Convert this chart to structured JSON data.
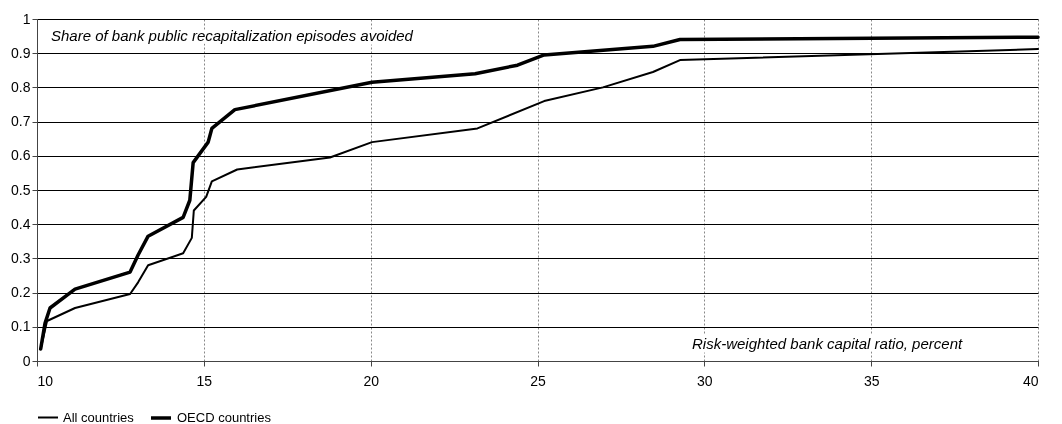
{
  "chart_data": {
    "type": "line",
    "xlabel": "Risk-weighted bank capital ratio, percent",
    "ylabel": "Share of bank public recapitalization episodes avoided",
    "xlim": [
      10,
      40
    ],
    "xticks": [
      10,
      15,
      20,
      25,
      30,
      35,
      40
    ],
    "ylim": [
      0,
      1
    ],
    "yticks": [
      0,
      0.1,
      0.2,
      0.3,
      0.4,
      0.5,
      0.6,
      0.7,
      0.8,
      0.9,
      1
    ],
    "grid": true,
    "legend": "bottom",
    "line_style": "solid",
    "marker": "none",
    "series": [
      {
        "name": "All countries",
        "color": "#000000",
        "x": [
          10.11,
          10.3,
          11.14,
          12.79,
          13.03,
          13.33,
          14.38,
          14.64,
          14.7,
          15.07,
          15.24,
          16.0,
          18.78,
          20.04,
          23.2,
          25.2,
          26.96,
          28.46,
          29.27,
          40
        ],
        "values": [
          0.035,
          0.117,
          0.155,
          0.196,
          0.23,
          0.28,
          0.315,
          0.36,
          0.44,
          0.48,
          0.525,
          0.56,
          0.595,
          0.64,
          0.68,
          0.76,
          0.8,
          0.845,
          0.88,
          0.912
        ]
      },
      {
        "name": "OECD countries",
        "color": "#000000",
        "x": [
          10.11,
          10.24,
          10.39,
          11.14,
          12.79,
          13.03,
          13.33,
          14.38,
          14.58,
          14.68,
          15.13,
          15.24,
          15.93,
          20.04,
          23.13,
          24.4,
          25.2,
          28.46,
          29.27,
          40
        ],
        "values": [
          0.035,
          0.11,
          0.155,
          0.21,
          0.26,
          0.31,
          0.365,
          0.42,
          0.47,
          0.58,
          0.64,
          0.68,
          0.735,
          0.815,
          0.84,
          0.865,
          0.895,
          0.92,
          0.94,
          0.947
        ]
      }
    ]
  }
}
